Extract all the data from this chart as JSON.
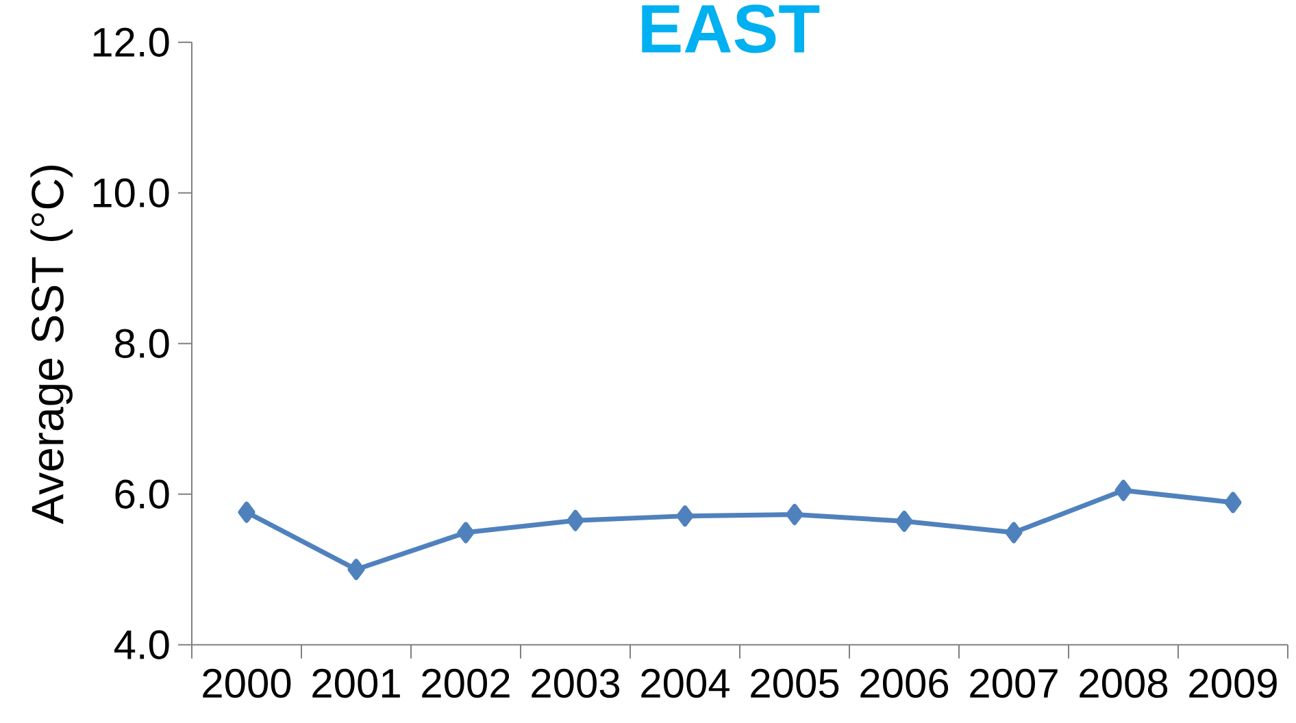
{
  "chart_data": {
    "type": "line",
    "title": "EAST",
    "ylabel": "Average SST (°C)",
    "categories": [
      "2000",
      "2001",
      "2002",
      "2003",
      "2004",
      "2005",
      "2006",
      "2007",
      "2008",
      "2009"
    ],
    "series": [
      {
        "color": "#4f81bd",
        "values": [
          5.76,
          5.0,
          5.49,
          5.65,
          5.71,
          5.73,
          5.64,
          5.49,
          6.05,
          5.89
        ]
      }
    ],
    "ylim": [
      4,
      12
    ],
    "yticks": [
      {
        "value": 4,
        "label": "4.0"
      },
      {
        "value": 6,
        "label": "6.0"
      },
      {
        "value": 8,
        "label": "8.0"
      },
      {
        "value": 10,
        "label": "10.0"
      },
      {
        "value": 12,
        "label": "12.0"
      }
    ],
    "marker": "diamond",
    "line_style": "solid"
  }
}
